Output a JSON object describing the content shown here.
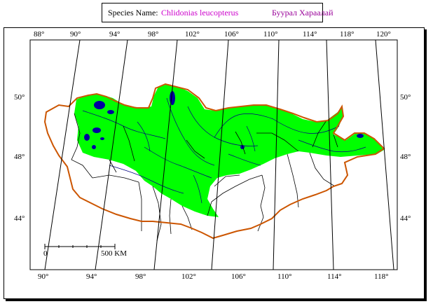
{
  "header": {
    "label": "Species Name:",
    "species_latin": "Chlidonias leucopterus",
    "species_local": "Буурал Хараалай",
    "latin_color": "#cc00cc",
    "local_color": "#990099"
  },
  "map": {
    "top_lon_labels": [
      "88°",
      "90°",
      "94°",
      "98°",
      "102°",
      "106°",
      "110°",
      "114°",
      "118°",
      "120°"
    ],
    "bottom_lon_labels": [
      "90°",
      "94°",
      "98°",
      "102°",
      "106°",
      "110°",
      "114°",
      "118°"
    ],
    "left_lat_labels": [
      "50°",
      "48°",
      "44°"
    ],
    "right_lat_labels": [
      "50°",
      "48°",
      "44°"
    ],
    "scale": {
      "start_label": "0",
      "end_label": "500 KM"
    },
    "colors": {
      "range_fill": "#00ff00",
      "border": "#cc5500",
      "rivers": "#000080",
      "lakes": "#0000a0",
      "admin_lines": "#000000"
    }
  }
}
